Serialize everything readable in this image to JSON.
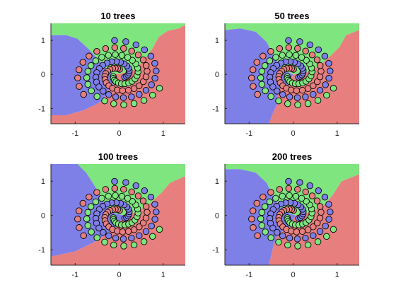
{
  "chart_data": [
    {
      "type": "scatter",
      "title": "10 trees",
      "xlim": [
        -1.55,
        1.5
      ],
      "ylim": [
        -1.45,
        1.5
      ],
      "xticks": [
        -1,
        0,
        1
      ],
      "yticks": [
        -1,
        0,
        1
      ],
      "xtick_labels": [
        "-1",
        "0",
        "1"
      ],
      "ytick_labels": [
        "-1",
        "0",
        "1"
      ],
      "series_colors": [
        "#7f7fe8",
        "#7fe57f",
        "#e87f7f"
      ],
      "regions": [
        {
          "class": "green",
          "polygon": [
            [
              -1.55,
              1.5
            ],
            [
              1.5,
              1.5
            ],
            [
              1.5,
              1.45
            ],
            [
              1.35,
              1.35
            ],
            [
              1.1,
              1.28
            ],
            [
              0.9,
              1.1
            ],
            [
              0.75,
              0.75
            ],
            [
              0.55,
              0.4
            ],
            [
              0.38,
              0.15
            ],
            [
              0.15,
              0.05
            ],
            [
              -0.1,
              0.0
            ],
            [
              -0.25,
              0.1
            ],
            [
              -0.45,
              0.4
            ],
            [
              -0.7,
              0.75
            ],
            [
              -0.95,
              1.05
            ],
            [
              -1.2,
              1.15
            ],
            [
              -1.55,
              1.15
            ]
          ]
        },
        {
          "class": "blue",
          "polygon": [
            [
              -1.55,
              1.15
            ],
            [
              -1.2,
              1.15
            ],
            [
              -0.95,
              1.05
            ],
            [
              -0.7,
              0.75
            ],
            [
              -0.45,
              0.4
            ],
            [
              -0.25,
              0.1
            ],
            [
              -0.1,
              0.0
            ],
            [
              -0.15,
              -0.35
            ],
            [
              -0.3,
              -0.55
            ],
            [
              -0.35,
              -0.75
            ],
            [
              -0.55,
              -0.9
            ],
            [
              -0.8,
              -1.05
            ],
            [
              -1.2,
              -1.2
            ],
            [
              -1.55,
              -1.2
            ]
          ]
        },
        {
          "class": "red",
          "polygon": [
            [
              1.5,
              1.45
            ],
            [
              1.5,
              -1.45
            ],
            [
              -1.55,
              -1.45
            ],
            [
              -1.55,
              -1.2
            ],
            [
              -1.2,
              -1.2
            ],
            [
              -0.8,
              -1.05
            ],
            [
              -0.55,
              -0.9
            ],
            [
              -0.35,
              -0.75
            ],
            [
              -0.3,
              -0.55
            ],
            [
              -0.15,
              -0.35
            ],
            [
              -0.1,
              0.0
            ],
            [
              0.15,
              0.05
            ],
            [
              0.38,
              0.15
            ],
            [
              0.55,
              0.4
            ],
            [
              0.75,
              0.75
            ],
            [
              0.9,
              1.1
            ],
            [
              1.1,
              1.28
            ],
            [
              1.35,
              1.35
            ]
          ]
        }
      ]
    },
    {
      "type": "scatter",
      "title": "50 trees",
      "xlim": [
        -1.55,
        1.5
      ],
      "ylim": [
        -1.45,
        1.5
      ],
      "xticks": [
        -1,
        0,
        1
      ],
      "yticks": [
        -1,
        0,
        1
      ],
      "xtick_labels": [
        "-1",
        "0",
        "1"
      ],
      "ytick_labels": [
        "-1",
        "0",
        "1"
      ],
      "series_colors": [
        "#7f7fe8",
        "#7fe57f",
        "#e87f7f"
      ],
      "regions": [
        {
          "class": "green",
          "polygon": [
            [
              -1.55,
              1.5
            ],
            [
              1.5,
              1.5
            ],
            [
              1.5,
              1.3
            ],
            [
              1.2,
              1.15
            ],
            [
              1.05,
              0.8
            ],
            [
              0.85,
              0.55
            ],
            [
              0.6,
              0.25
            ],
            [
              0.3,
              0.05
            ],
            [
              0.0,
              0.0
            ],
            [
              -0.25,
              0.15
            ],
            [
              -0.45,
              0.55
            ],
            [
              -0.6,
              0.95
            ],
            [
              -0.85,
              1.25
            ],
            [
              -1.2,
              1.35
            ],
            [
              -1.55,
              1.3
            ]
          ]
        },
        {
          "class": "blue",
          "polygon": [
            [
              -1.55,
              1.3
            ],
            [
              -1.2,
              1.35
            ],
            [
              -0.85,
              1.25
            ],
            [
              -0.6,
              0.95
            ],
            [
              -0.45,
              0.55
            ],
            [
              -0.25,
              0.15
            ],
            [
              0.0,
              0.0
            ],
            [
              -0.1,
              -0.3
            ],
            [
              -0.35,
              -0.45
            ],
            [
              -0.35,
              -0.85
            ],
            [
              -0.45,
              -1.1
            ],
            [
              -0.55,
              -1.45
            ],
            [
              -1.55,
              -1.45
            ]
          ]
        },
        {
          "class": "red",
          "polygon": [
            [
              1.5,
              1.3
            ],
            [
              1.5,
              -1.45
            ],
            [
              -0.55,
              -1.45
            ],
            [
              -0.45,
              -1.1
            ],
            [
              -0.35,
              -0.85
            ],
            [
              -0.35,
              -0.45
            ],
            [
              -0.1,
              -0.3
            ],
            [
              0.0,
              0.0
            ],
            [
              0.3,
              0.05
            ],
            [
              0.6,
              0.25
            ],
            [
              0.85,
              0.55
            ],
            [
              1.05,
              0.8
            ],
            [
              1.2,
              1.15
            ]
          ]
        }
      ]
    },
    {
      "type": "scatter",
      "title": "100 trees",
      "xlim": [
        -1.55,
        1.5
      ],
      "ylim": [
        -1.45,
        1.5
      ],
      "xticks": [
        -1,
        0,
        1
      ],
      "yticks": [
        -1,
        0,
        1
      ],
      "xtick_labels": [
        "-1",
        "0",
        "1"
      ],
      "ytick_labels": [
        "-1",
        "0",
        "1"
      ],
      "series_colors": [
        "#7f7fe8",
        "#7fe57f",
        "#e87f7f"
      ],
      "regions": [
        {
          "class": "green",
          "polygon": [
            [
              -0.95,
              1.5
            ],
            [
              1.5,
              1.5
            ],
            [
              1.5,
              1.15
            ],
            [
              1.15,
              0.95
            ],
            [
              0.95,
              0.65
            ],
            [
              0.7,
              0.35
            ],
            [
              0.4,
              0.1
            ],
            [
              0.1,
              0.0
            ],
            [
              -0.2,
              0.1
            ],
            [
              -0.4,
              0.5
            ],
            [
              -0.55,
              0.85
            ],
            [
              -0.75,
              1.25
            ]
          ]
        },
        {
          "class": "blue",
          "polygon": [
            [
              -1.55,
              1.5
            ],
            [
              -0.95,
              1.5
            ],
            [
              -0.75,
              1.25
            ],
            [
              -0.55,
              0.85
            ],
            [
              -0.4,
              0.5
            ],
            [
              -0.2,
              0.1
            ],
            [
              0.1,
              0.0
            ],
            [
              -0.1,
              -0.4
            ],
            [
              -0.35,
              -0.6
            ],
            [
              -0.6,
              -0.8
            ],
            [
              -1.0,
              -1.05
            ],
            [
              -1.55,
              -1.2
            ]
          ]
        },
        {
          "class": "red",
          "polygon": [
            [
              1.5,
              1.15
            ],
            [
              1.5,
              -1.45
            ],
            [
              -1.55,
              -1.45
            ],
            [
              -1.55,
              -1.2
            ],
            [
              -1.0,
              -1.05
            ],
            [
              -0.6,
              -0.8
            ],
            [
              -0.35,
              -0.6
            ],
            [
              -0.1,
              -0.4
            ],
            [
              0.1,
              0.0
            ],
            [
              0.4,
              0.1
            ],
            [
              0.7,
              0.35
            ],
            [
              0.95,
              0.65
            ],
            [
              1.15,
              0.95
            ]
          ]
        }
      ]
    },
    {
      "type": "scatter",
      "title": "200 trees",
      "xlim": [
        -1.55,
        1.5
      ],
      "ylim": [
        -1.45,
        1.5
      ],
      "xticks": [
        -1,
        0,
        1
      ],
      "yticks": [
        -1,
        0,
        1
      ],
      "xtick_labels": [
        "-1",
        "0",
        "1"
      ],
      "ytick_labels": [
        "-1",
        "0",
        "1"
      ],
      "series_colors": [
        "#7f7fe8",
        "#7fe57f",
        "#e87f7f"
      ],
      "regions": [
        {
          "class": "green",
          "polygon": [
            [
              -1.55,
              1.5
            ],
            [
              1.5,
              1.5
            ],
            [
              1.5,
              1.2
            ],
            [
              1.1,
              1.0
            ],
            [
              0.9,
              0.6
            ],
            [
              0.7,
              0.3
            ],
            [
              0.4,
              0.1
            ],
            [
              0.05,
              0.0
            ],
            [
              -0.25,
              0.15
            ],
            [
              -0.45,
              0.55
            ],
            [
              -0.6,
              0.95
            ],
            [
              -0.85,
              1.25
            ],
            [
              -1.2,
              1.35
            ],
            [
              -1.55,
              1.35
            ]
          ]
        },
        {
          "class": "blue",
          "polygon": [
            [
              -1.55,
              1.35
            ],
            [
              -1.2,
              1.35
            ],
            [
              -0.85,
              1.25
            ],
            [
              -0.6,
              0.95
            ],
            [
              -0.45,
              0.55
            ],
            [
              -0.25,
              0.15
            ],
            [
              0.05,
              0.0
            ],
            [
              -0.1,
              -0.35
            ],
            [
              -0.35,
              -0.55
            ],
            [
              -0.45,
              -0.9
            ],
            [
              -0.55,
              -1.45
            ],
            [
              -1.55,
              -1.45
            ]
          ]
        },
        {
          "class": "red",
          "polygon": [
            [
              1.5,
              1.2
            ],
            [
              1.5,
              -1.45
            ],
            [
              -0.55,
              -1.45
            ],
            [
              -0.45,
              -0.9
            ],
            [
              -0.35,
              -0.55
            ],
            [
              -0.1,
              -0.35
            ],
            [
              0.05,
              0.0
            ],
            [
              0.4,
              0.1
            ],
            [
              0.7,
              0.3
            ],
            [
              0.9,
              0.6
            ],
            [
              1.1,
              1.0
            ]
          ]
        }
      ]
    }
  ]
}
